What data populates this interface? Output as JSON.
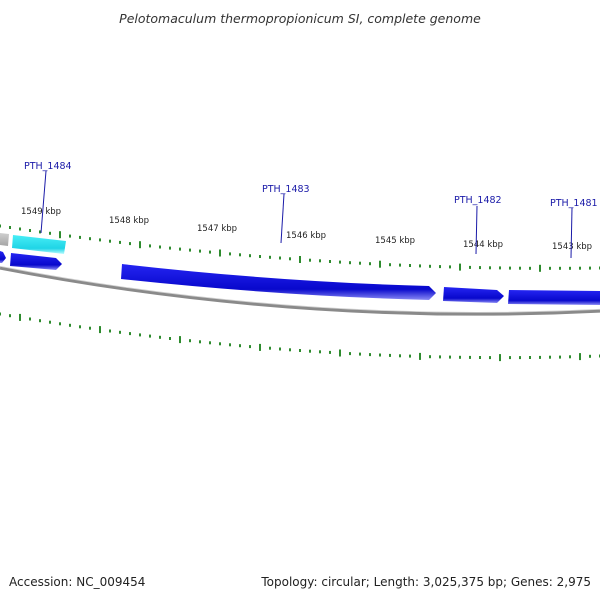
{
  "title": "Pelotomaculum thermopropionicum SI, complete genome",
  "footer": {
    "accession": "Accession: NC_009454",
    "summary": "Topology: circular; Length: 3,025,375 bp; Genes: 2,975"
  },
  "colors": {
    "gene_forward": "#0b0bd6",
    "gene_highlight": "#2ee0ee",
    "gene_other": "#b8b8b8",
    "backbone": "#8a8a8a",
    "tick": "#2e8b2e",
    "gene_label": "#1a1aa8"
  },
  "scale": {
    "labels": [
      "1549 kbp",
      "1548 kbp",
      "1547 kbp",
      "1546 kbp",
      "1545 kbp",
      "1544 kbp",
      "1543 kbp"
    ]
  },
  "gene_labels": [
    {
      "id": "PTH_1484",
      "text": "PTH_1484"
    },
    {
      "id": "PTH_1483",
      "text": "PTH_1483"
    },
    {
      "id": "PTH_1482",
      "text": "PTH_1482"
    },
    {
      "id": "PTH_1481",
      "text": "PTH_1481"
    }
  ]
}
